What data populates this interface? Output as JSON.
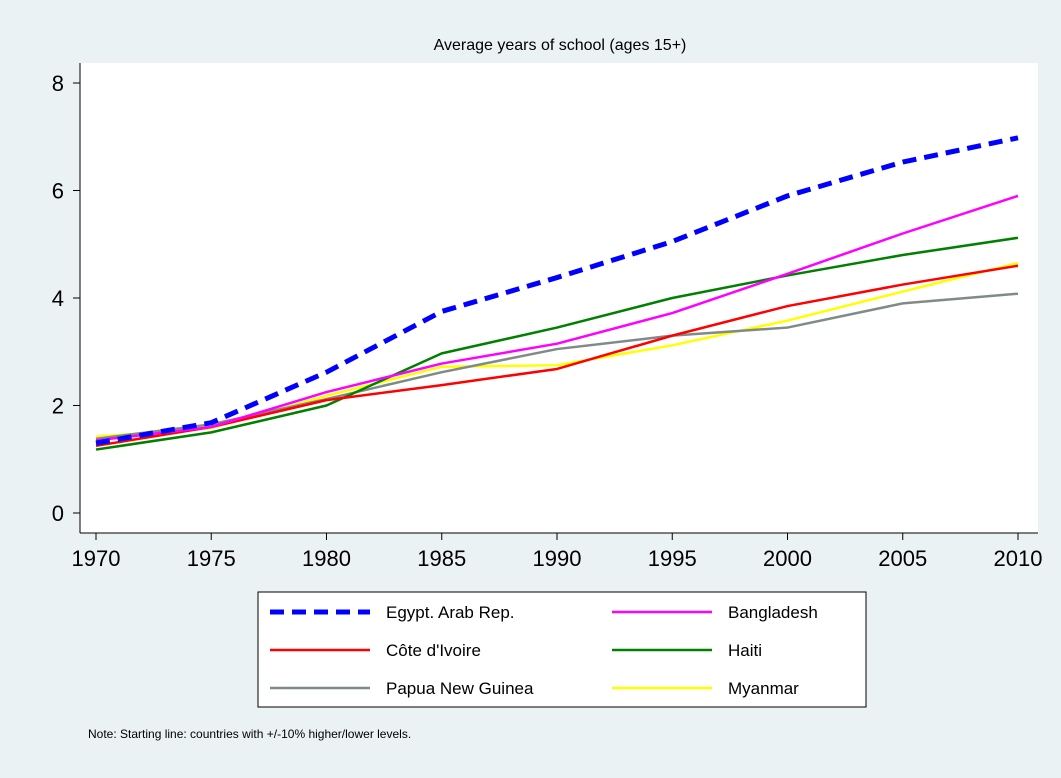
{
  "chart_data": {
    "type": "line",
    "title": "Average years of school (ages 15+)",
    "xlabel": "",
    "ylabel": "",
    "x": [
      1970,
      1975,
      1980,
      1985,
      1990,
      1995,
      2000,
      2005,
      2010
    ],
    "xlim": [
      1970,
      2010
    ],
    "ylim": [
      0,
      8
    ],
    "x_ticks": [
      1970,
      1975,
      1980,
      1985,
      1990,
      1995,
      2000,
      2005,
      2010
    ],
    "y_ticks": [
      0,
      2,
      4,
      6,
      8
    ],
    "grid": false,
    "legend_position": "bottom",
    "series": [
      {
        "name": "Egypt. Arab Rep.",
        "color": "#0000ff",
        "dashed": true,
        "emphasis": true,
        "values": [
          1.3,
          1.68,
          2.62,
          3.75,
          4.38,
          5.05,
          5.9,
          6.53,
          6.98
        ]
      },
      {
        "name": "Bangladesh",
        "color": "#ff00ff",
        "dashed": false,
        "values": [
          1.35,
          1.6,
          2.25,
          2.78,
          3.15,
          3.72,
          4.45,
          5.2,
          5.9
        ]
      },
      {
        "name": "Côte d'Ivoire",
        "color": "#ff0000",
        "dashed": false,
        "values": [
          1.25,
          1.6,
          2.1,
          2.38,
          2.68,
          3.3,
          3.85,
          4.25,
          4.6
        ]
      },
      {
        "name": "Haiti",
        "color": "#008000",
        "dashed": false,
        "values": [
          1.18,
          1.5,
          2.0,
          2.97,
          3.45,
          4.0,
          4.42,
          4.8,
          5.12
        ]
      },
      {
        "name": "Papua New Guinea",
        "color": "#808a87",
        "dashed": false,
        "values": [
          1.38,
          1.65,
          2.12,
          2.62,
          3.05,
          3.3,
          3.45,
          3.9,
          4.08
        ]
      },
      {
        "name": "Myanmar",
        "color": "#ffff00",
        "dashed": false,
        "values": [
          1.42,
          1.58,
          2.18,
          2.72,
          2.75,
          3.12,
          3.58,
          4.12,
          4.65
        ]
      }
    ],
    "note": "Note: Starting line: countries with +/-10% higher/lower levels."
  }
}
